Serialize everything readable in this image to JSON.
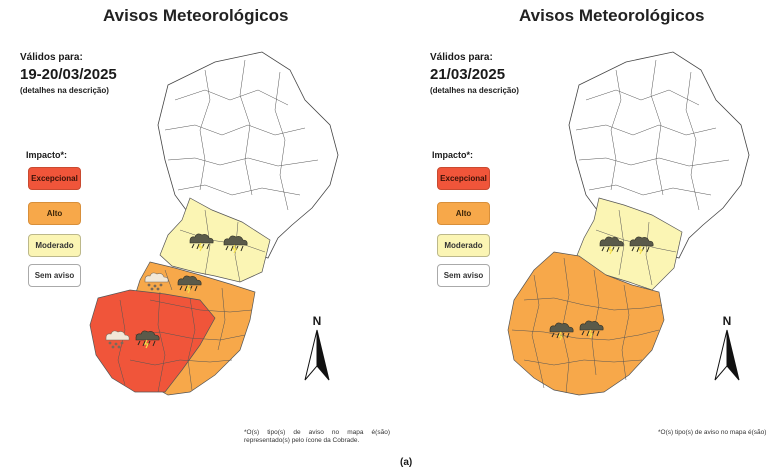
{
  "caption": "(a)",
  "legend": {
    "title": "Impacto*:",
    "items": [
      {
        "label": "Excepcional",
        "color": "#f0553a"
      },
      {
        "label": "Alto",
        "color": "#f7a84a"
      },
      {
        "label": "Moderado",
        "color": "#fbf5b4"
      },
      {
        "label": "Sem aviso",
        "color": "#ffffff"
      }
    ]
  },
  "north_label": "N",
  "panels": [
    {
      "title": "Avisos Meteorológicos",
      "valid_label": "Válidos para:",
      "valid_date": "19-20/03/2025",
      "valid_note": "(detalhes na descrição)",
      "footnote": "*O(s) tipo(s) de aviso no mapa é(são) representado(s) pelo ícone da Cobrade.",
      "icons": [
        "hail-storm-icon",
        "storm-cloud-icon"
      ]
    },
    {
      "title": "Avisos Meteorológicos",
      "valid_label": "Válidos para:",
      "valid_date": "21/03/2025",
      "valid_note": "(detalhes na descrição)",
      "footnote": "*O(s) tipo(s) de aviso no mapa é(são) representado(s) pelo ícone da Cobrade.",
      "icons": [
        "storm-cloud-icon"
      ]
    }
  ]
}
